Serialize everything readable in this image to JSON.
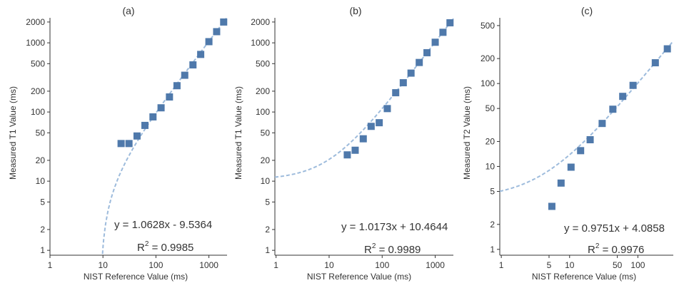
{
  "chart_data": [
    {
      "type": "scatter",
      "panel_label": "(a)",
      "xlabel": "NIST Reference Value (ms)",
      "ylabel": "Measured T1 Value (ms)",
      "x_scale": "log",
      "y_scale": "log",
      "xlim": [
        1,
        2200
      ],
      "ylim": [
        0.85,
        2300
      ],
      "x_ticks": [
        1,
        10,
        100,
        1000
      ],
      "y_ticks": [
        1,
        2,
        5,
        10,
        20,
        50,
        100,
        200,
        500,
        1000,
        2000
      ],
      "x_tick_labels": [
        "1",
        "10",
        "100",
        "1000"
      ],
      "y_tick_labels": [
        "1",
        "2",
        "5",
        "10",
        "20",
        "50",
        "100",
        "200",
        "500",
        "1000",
        "2000"
      ],
      "points": [
        {
          "x": 22,
          "y": 35
        },
        {
          "x": 31,
          "y": 35
        },
        {
          "x": 44,
          "y": 45
        },
        {
          "x": 62,
          "y": 64
        },
        {
          "x": 88,
          "y": 85
        },
        {
          "x": 125,
          "y": 115
        },
        {
          "x": 180,
          "y": 165
        },
        {
          "x": 250,
          "y": 240
        },
        {
          "x": 350,
          "y": 340
        },
        {
          "x": 500,
          "y": 480
        },
        {
          "x": 700,
          "y": 680
        },
        {
          "x": 1000,
          "y": 1040
        },
        {
          "x": 1400,
          "y": 1450
        },
        {
          "x": 1900,
          "y": 2000
        }
      ],
      "fit": {
        "slope": 1.0628,
        "intercept": -9.5364
      },
      "equation": "y = 1.0628x - 9.5364",
      "r2_label": "R",
      "r2_sup": "2",
      "r2_value": " = 0.9985"
    },
    {
      "type": "scatter",
      "panel_label": "(b)",
      "xlabel": "NIST Reference Value (ms)",
      "ylabel": "Measured T1 Value (ms)",
      "x_scale": "log",
      "y_scale": "log",
      "xlim": [
        0.95,
        2200
      ],
      "ylim": [
        0.85,
        2300
      ],
      "x_ticks": [
        1,
        10,
        100,
        1000
      ],
      "y_ticks": [
        1,
        2,
        5,
        10,
        20,
        50,
        100,
        200,
        500,
        1000,
        2000
      ],
      "x_tick_labels": [
        "1",
        "10",
        "100",
        "1000"
      ],
      "y_tick_labels": [
        "1",
        "2",
        "5",
        "10",
        "20",
        "50",
        "100",
        "200",
        "500",
        "1000",
        "2000"
      ],
      "points": [
        {
          "x": 22,
          "y": 24
        },
        {
          "x": 31,
          "y": 28
        },
        {
          "x": 44,
          "y": 41
        },
        {
          "x": 62,
          "y": 62
        },
        {
          "x": 88,
          "y": 70
        },
        {
          "x": 125,
          "y": 112
        },
        {
          "x": 180,
          "y": 190
        },
        {
          "x": 250,
          "y": 265
        },
        {
          "x": 350,
          "y": 365
        },
        {
          "x": 500,
          "y": 520
        },
        {
          "x": 700,
          "y": 720
        },
        {
          "x": 1000,
          "y": 1020
        },
        {
          "x": 1400,
          "y": 1420
        },
        {
          "x": 1900,
          "y": 1950
        }
      ],
      "fit": {
        "slope": 1.0173,
        "intercept": 10.4644
      },
      "equation": "y = 1.0173x + 10.4644",
      "r2_label": "R",
      "r2_sup": "2",
      "r2_value": " = 0.9989"
    },
    {
      "type": "scatter",
      "panel_label": "(c)",
      "xlabel": "NIST Reference Value (ms)",
      "ylabel": "Measured T2 Value (ms)",
      "x_scale": "log",
      "y_scale": "log",
      "xlim": [
        0.95,
        330
      ],
      "ylim": [
        0.85,
        620
      ],
      "x_ticks": [
        1,
        5,
        10,
        50,
        100
      ],
      "y_ticks": [
        1,
        2,
        5,
        10,
        20,
        50,
        100,
        200,
        500
      ],
      "x_tick_labels": [
        "1",
        "5",
        "10",
        "50",
        "100"
      ],
      "y_tick_labels": [
        "1",
        "2",
        "5",
        "10",
        "20",
        "50",
        "100",
        "200",
        "500"
      ],
      "points": [
        {
          "x": 5.5,
          "y": 3.3
        },
        {
          "x": 7.5,
          "y": 6.3
        },
        {
          "x": 10.5,
          "y": 9.8
        },
        {
          "x": 14.5,
          "y": 15.5
        },
        {
          "x": 20,
          "y": 21
        },
        {
          "x": 30,
          "y": 33
        },
        {
          "x": 43,
          "y": 49
        },
        {
          "x": 60,
          "y": 70
        },
        {
          "x": 85,
          "y": 95
        },
        {
          "x": 180,
          "y": 178
        },
        {
          "x": 270,
          "y": 262
        }
      ],
      "fit": {
        "slope": 0.9751,
        "intercept": 4.0858
      },
      "equation": "y = 0.9751x + 4.0858",
      "r2_label": "R",
      "r2_sup": "2",
      "r2_value": " = 0.9976"
    }
  ],
  "colors": {
    "marker": "#4f79ab",
    "fit_line": "#9dbbdc",
    "axis": "#333333",
    "text": "#333333"
  }
}
